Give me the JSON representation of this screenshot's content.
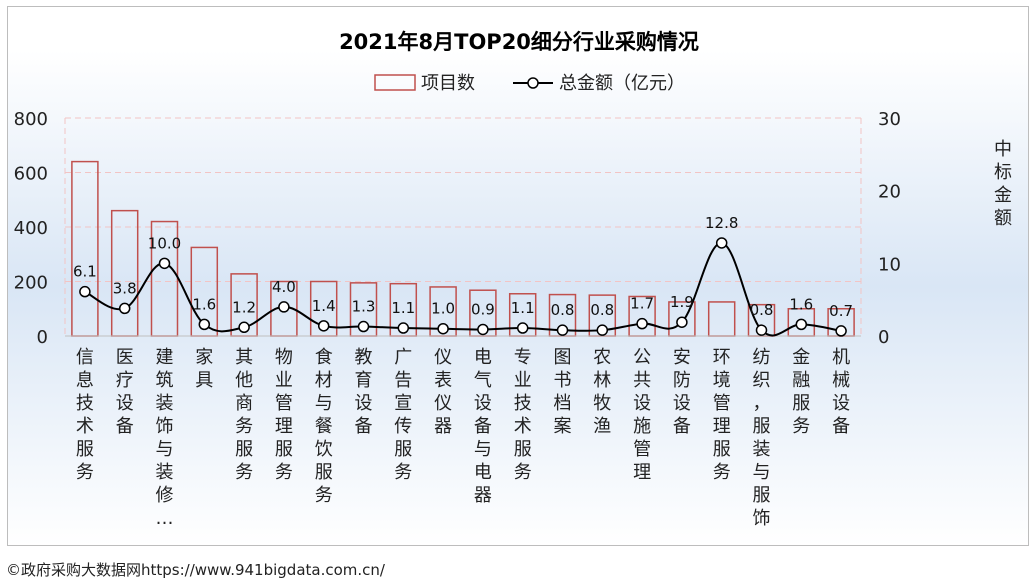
{
  "chart_data": {
    "type": "bar",
    "title": "2021年8月TOP20细分行业采购情况",
    "legend": {
      "bar": "项目数",
      "line": "总金额（亿元）",
      "position": "top"
    },
    "categories": [
      "信息技术服务",
      "医疗设备",
      "建筑装饰与装修…",
      "家具",
      "其他商务服务",
      "物业管理服务",
      "食材与餐饮服务",
      "教育设备",
      "广告宣传服务",
      "仪表仪器",
      "电气设备与电器",
      "专业技术服务",
      "图书档案",
      "农林牧渔",
      "公共设施管理",
      "安防设备",
      "环境管理服务",
      "纺织，服装与服饰",
      "金融服务",
      "机械设备"
    ],
    "series": [
      {
        "name": "项目数",
        "type": "bar",
        "axis": "left",
        "color": "#c0504d",
        "values": [
          640,
          460,
          420,
          325,
          228,
          200,
          200,
          195,
          192,
          180,
          168,
          155,
          152,
          150,
          145,
          125,
          125,
          115,
          100,
          100
        ]
      },
      {
        "name": "总金额（亿元）",
        "type": "line",
        "axis": "right",
        "color": "#000000",
        "values": [
          6.1,
          3.8,
          10.0,
          1.6,
          1.2,
          4.0,
          1.4,
          1.3,
          1.1,
          1.0,
          0.9,
          1.1,
          0.8,
          0.8,
          1.7,
          1.9,
          12.8,
          0.8,
          1.6,
          0.7
        ],
        "labels": [
          "6.1",
          "3.8",
          "10.0",
          "1.6",
          "1.2",
          "4.0",
          "1.4",
          "1.3",
          "1.1",
          "1.0",
          "0.9",
          "1.1",
          "0.8",
          "0.8",
          "1.7",
          "1.9",
          "12.8",
          "0.8",
          "1.6",
          "0.7"
        ]
      }
    ],
    "y_left": {
      "min": 0,
      "max": 800,
      "ticks": [
        "0",
        "200",
        "400",
        "600",
        "800"
      ]
    },
    "y_right": {
      "min": 0,
      "max": 30,
      "ticks": [
        "0",
        "10",
        "20",
        "30"
      ],
      "label": "中标金额"
    },
    "grid": true
  },
  "footer": "©政府采购大数据网https://www.941bigdata.com.cn/"
}
